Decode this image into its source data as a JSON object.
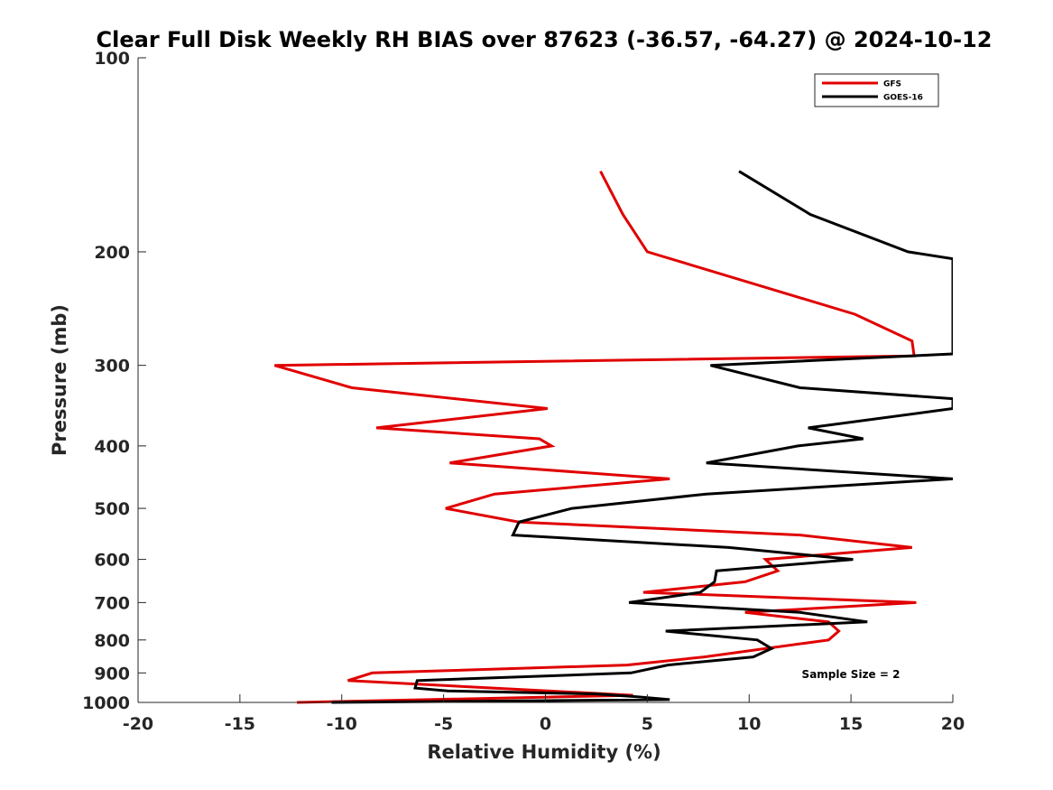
{
  "chart_data": {
    "type": "line",
    "title": "Clear Full Disk Weekly RH BIAS over 87623 (-36.57, -64.27) @ 2024-10-12",
    "xlabel": "Relative Humidity (%)",
    "ylabel": "Pressure (mb)",
    "xlim": [
      -20,
      20
    ],
    "ylim": [
      100,
      1000
    ],
    "y_scale": "log",
    "y_reversed": true,
    "x_ticks": [
      -20,
      -15,
      -10,
      -5,
      0,
      5,
      10,
      15,
      20
    ],
    "x_tick_labels": [
      "-20",
      "-15",
      "-10",
      "-5",
      "0",
      "5",
      "10",
      "15",
      "20"
    ],
    "y_ticks": [
      100,
      200,
      300,
      400,
      500,
      600,
      700,
      800,
      900,
      1000
    ],
    "y_tick_labels": [
      "100",
      "200",
      "300",
      "400",
      "500",
      "600",
      "700",
      "800",
      "900",
      "1000"
    ],
    "grid": false,
    "legend_position": "top-right",
    "annotation": "Sample Size = 2",
    "series": [
      {
        "name": "GFS",
        "color": "#e00000",
        "points": [
          [
            2.7,
            150
          ],
          [
            3.8,
            175
          ],
          [
            5.0,
            200
          ],
          [
            15.2,
            250
          ],
          [
            18.0,
            275
          ],
          [
            18.1,
            290
          ],
          [
            -13.3,
            300
          ],
          [
            -9.5,
            325
          ],
          [
            0.1,
            350
          ],
          [
            -8.3,
            375
          ],
          [
            -0.3,
            390
          ],
          [
            0.3,
            400
          ],
          [
            -4.7,
            425
          ],
          [
            6.1,
            450
          ],
          [
            -2.5,
            475
          ],
          [
            -4.9,
            500
          ],
          [
            -1.3,
            525
          ],
          [
            12.5,
            550
          ],
          [
            18.0,
            575
          ],
          [
            10.8,
            600
          ],
          [
            11.4,
            625
          ],
          [
            9.8,
            650
          ],
          [
            4.8,
            675
          ],
          [
            18.2,
            700
          ],
          [
            9.8,
            725
          ],
          [
            13.9,
            750
          ],
          [
            14.4,
            775
          ],
          [
            13.9,
            800
          ],
          [
            7.8,
            850
          ],
          [
            4.0,
            875
          ],
          [
            -8.5,
            900
          ],
          [
            -9.7,
            925
          ],
          [
            4.3,
            975
          ],
          [
            -12.2,
            1000
          ]
        ]
      },
      {
        "name": "GOES-16",
        "color": "#000000",
        "points": [
          [
            9.5,
            150
          ],
          [
            13.0,
            175
          ],
          [
            17.8,
            200
          ],
          [
            20.0,
            205
          ],
          [
            20.0,
            288
          ],
          [
            8.1,
            300
          ],
          [
            12.5,
            325
          ],
          [
            20.0,
            338
          ],
          [
            20.0,
            350
          ],
          [
            12.9,
            375
          ],
          [
            15.6,
            390
          ],
          [
            12.4,
            400
          ],
          [
            7.9,
            425
          ],
          [
            20.0,
            450
          ],
          [
            7.9,
            475
          ],
          [
            1.3,
            500
          ],
          [
            -1.3,
            525
          ],
          [
            -1.6,
            550
          ],
          [
            9.0,
            575
          ],
          [
            15.1,
            600
          ],
          [
            8.4,
            625
          ],
          [
            8.3,
            650
          ],
          [
            7.6,
            675
          ],
          [
            4.1,
            700
          ],
          [
            12.5,
            725
          ],
          [
            15.8,
            750
          ],
          [
            5.9,
            775
          ],
          [
            10.4,
            800
          ],
          [
            11.1,
            825
          ],
          [
            10.2,
            850
          ],
          [
            6.0,
            875
          ],
          [
            4.2,
            900
          ],
          [
            -6.3,
            925
          ],
          [
            -6.4,
            950
          ],
          [
            -4.8,
            960
          ],
          [
            2.5,
            970
          ],
          [
            4.5,
            980
          ],
          [
            6.1,
            990
          ],
          [
            -10.5,
            1000
          ]
        ]
      }
    ]
  }
}
